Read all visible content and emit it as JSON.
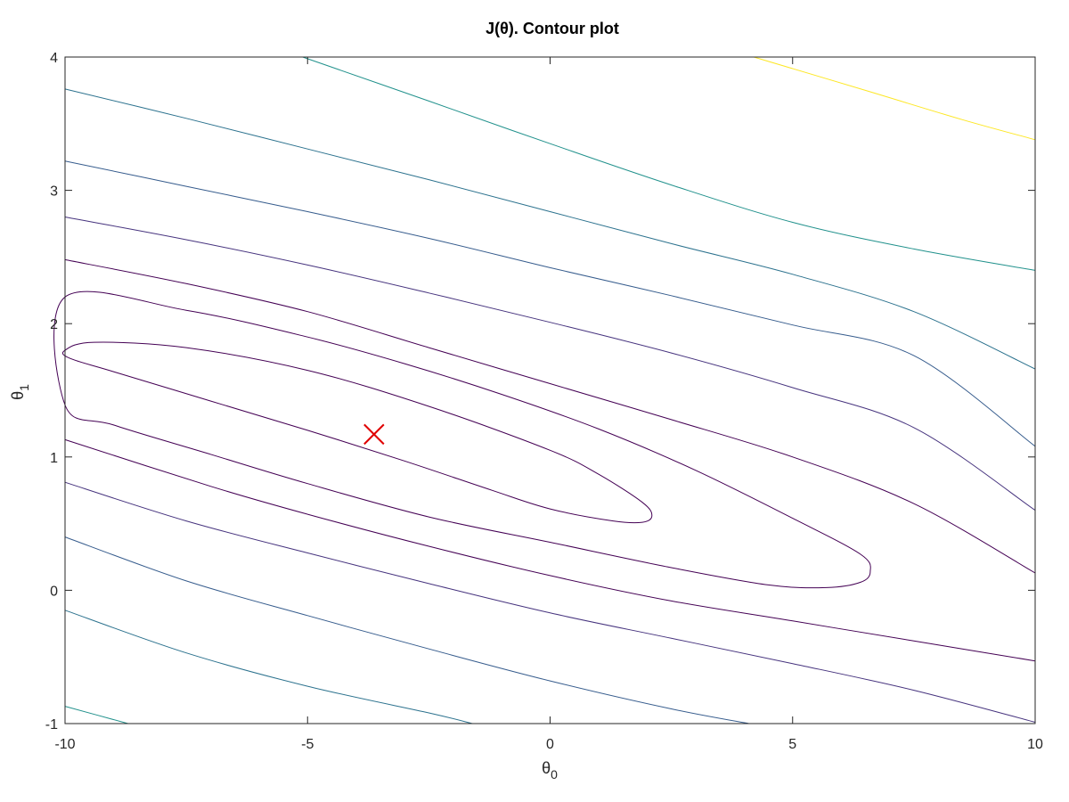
{
  "chart_data": {
    "type": "contour",
    "title": "J(θ). Contour plot",
    "xlabel": {
      "base": "θ",
      "sub": "0"
    },
    "ylabel": {
      "base": "θ",
      "sub": "1"
    },
    "xlim": [
      -10,
      10
    ],
    "ylim": [
      -1,
      4
    ],
    "xticks": [
      -10,
      -5,
      0,
      5,
      10
    ],
    "yticks": [
      -1,
      0,
      1,
      2,
      3,
      4
    ],
    "xtick_labels": [
      "-10",
      "-5",
      "0",
      "5",
      "10"
    ],
    "ytick_labels": [
      "-1",
      "0",
      "1",
      "2",
      "3",
      "4"
    ],
    "grid": false,
    "colormap": "viridis",
    "contours": [
      {
        "closed": true,
        "color": "#440154",
        "points": [
          [
            -10,
            1.8
          ],
          [
            -9.4,
            1.86
          ],
          [
            -7.5,
            1.82
          ],
          [
            -5,
            1.65
          ],
          [
            -2.5,
            1.38
          ],
          [
            0,
            1.05
          ],
          [
            1,
            0.87
          ],
          [
            1.9,
            0.66
          ],
          [
            2.1,
            0.56
          ],
          [
            1.9,
            0.51
          ],
          [
            1.3,
            0.52
          ],
          [
            0,
            0.61
          ],
          [
            -1.2,
            0.75
          ],
          [
            -3,
            0.97
          ],
          [
            -5,
            1.2
          ],
          [
            -7,
            1.42
          ],
          [
            -9,
            1.64
          ],
          [
            -9.9,
            1.74
          ]
        ]
      },
      {
        "closed": true,
        "color": "#440154",
        "points": [
          [
            -10,
            1.39
          ],
          [
            -9,
            1.24
          ],
          [
            -7,
            1.02
          ],
          [
            -5,
            0.8
          ],
          [
            -2.5,
            0.55
          ],
          [
            0,
            0.36
          ],
          [
            2.5,
            0.17
          ],
          [
            4.5,
            0.04
          ],
          [
            5.7,
            0.02
          ],
          [
            6.4,
            0.06
          ],
          [
            6.6,
            0.14
          ],
          [
            6.4,
            0.27
          ],
          [
            5,
            0.54
          ],
          [
            3,
            0.9
          ],
          [
            1,
            1.21
          ],
          [
            -1,
            1.47
          ],
          [
            -3,
            1.7
          ],
          [
            -5,
            1.9
          ],
          [
            -7.5,
            2.1
          ],
          [
            -10,
            2.2
          ]
        ]
      },
      {
        "closed": false,
        "color": "#440154",
        "points": [
          [
            -10,
            1.13
          ],
          [
            -7,
            0.78
          ],
          [
            -5,
            0.57
          ],
          [
            -2.5,
            0.33
          ],
          [
            0,
            0.11
          ],
          [
            2.5,
            -0.08
          ],
          [
            5,
            -0.23
          ],
          [
            7.5,
            -0.38
          ],
          [
            9,
            -0.47
          ],
          [
            10,
            -0.53
          ]
        ]
      },
      {
        "closed": false,
        "color": "#440154",
        "points": [
          [
            -10,
            2.48
          ],
          [
            -7.5,
            2.3
          ],
          [
            -5,
            2.09
          ],
          [
            -2.5,
            1.82
          ],
          [
            0,
            1.55
          ],
          [
            2.5,
            1.28
          ],
          [
            5,
            1
          ],
          [
            7.5,
            0.65
          ],
          [
            10,
            0.13
          ]
        ]
      },
      {
        "closed": false,
        "color": "#46337e",
        "points": [
          [
            -10,
            0.81
          ],
          [
            -7.5,
            0.52
          ],
          [
            -5,
            0.28
          ],
          [
            -2.5,
            0.05
          ],
          [
            0,
            -0.17
          ],
          [
            2.5,
            -0.36
          ],
          [
            5,
            -0.55
          ],
          [
            7.5,
            -0.75
          ],
          [
            10,
            -0.99
          ]
        ]
      },
      {
        "closed": false,
        "color": "#46337e",
        "points": [
          [
            -10,
            2.8
          ],
          [
            -7.5,
            2.63
          ],
          [
            -5,
            2.44
          ],
          [
            -2.5,
            2.23
          ],
          [
            0,
            2.01
          ],
          [
            2.5,
            1.78
          ],
          [
            5,
            1.52
          ],
          [
            7.5,
            1.22
          ],
          [
            10,
            0.6
          ]
        ]
      },
      {
        "closed": false,
        "color": "#365c8d",
        "points": [
          [
            -10,
            0.4
          ],
          [
            -7.5,
            0.07
          ],
          [
            -5,
            -0.19
          ],
          [
            -2.5,
            -0.44
          ],
          [
            0,
            -0.68
          ],
          [
            2.5,
            -0.89
          ],
          [
            4.1,
            -1
          ]
        ]
      },
      {
        "closed": false,
        "color": "#365c8d",
        "points": [
          [
            -10,
            3.22
          ],
          [
            -7.5,
            3.03
          ],
          [
            -5,
            2.84
          ],
          [
            -2.5,
            2.64
          ],
          [
            0,
            2.42
          ],
          [
            2.5,
            2.21
          ],
          [
            5,
            1.99
          ],
          [
            7.5,
            1.76
          ],
          [
            10,
            1.08
          ]
        ]
      },
      {
        "closed": false,
        "color": "#2c728e",
        "points": [
          [
            -10,
            -0.15
          ],
          [
            -7.5,
            -0.47
          ],
          [
            -5,
            -0.72
          ],
          [
            -2.5,
            -0.92
          ],
          [
            -1.6,
            -1
          ]
        ]
      },
      {
        "closed": false,
        "color": "#2c728e",
        "points": [
          [
            -10,
            3.76
          ],
          [
            -7.5,
            3.54
          ],
          [
            -5,
            3.31
          ],
          [
            -2.5,
            3.08
          ],
          [
            0,
            2.84
          ],
          [
            2.5,
            2.6
          ],
          [
            5,
            2.37
          ],
          [
            7.5,
            2.09
          ],
          [
            10,
            1.66
          ]
        ]
      },
      {
        "closed": false,
        "color": "#21918c",
        "points": [
          [
            -10,
            -0.87
          ],
          [
            -8.7,
            -1
          ]
        ]
      },
      {
        "closed": false,
        "color": "#21918c",
        "points": [
          [
            -5.1,
            4
          ],
          [
            -2.5,
            3.67
          ],
          [
            0,
            3.35
          ],
          [
            2.5,
            3.04
          ],
          [
            5,
            2.76
          ],
          [
            7.5,
            2.56
          ],
          [
            10,
            2.4
          ]
        ]
      },
      {
        "closed": false,
        "color": "#fde725",
        "points": [
          [
            4.2,
            4
          ],
          [
            6.5,
            3.75
          ],
          [
            8.5,
            3.53
          ],
          [
            10,
            3.38
          ]
        ]
      }
    ],
    "marker": {
      "x": -3.63,
      "y": 1.17,
      "symbol": "x",
      "color": "#e00000"
    }
  }
}
